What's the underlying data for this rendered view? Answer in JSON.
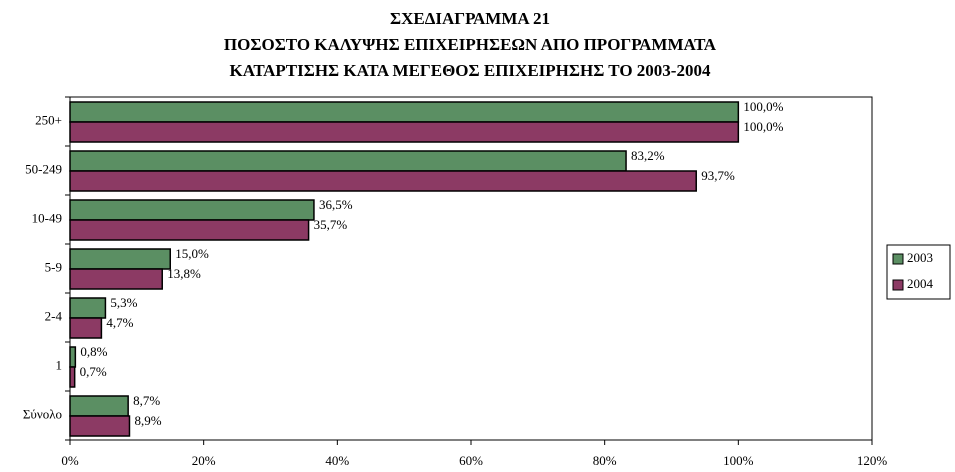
{
  "chart_data": {
    "type": "hbar",
    "title": [
      "ΣΧΕΔΙΑΓΡΑΜΜΑ 21",
      "ΠΟΣΟΣΤΟ ΚΑΛΥΨΗΣ ΕΠΙΧΕΙΡΗΣΕΩΝ ΑΠΟ ΠΡΟΓΡΑΜΜΑΤΑ",
      "ΚΑΤΑΡΤΙΣΗΣ ΚΑΤΑ ΜΕΓΕΘΟΣ ΕΠΙΧΕΙΡΗΣΗΣ ΤΟ 2003-2004"
    ],
    "categories": [
      "250+",
      "50-249",
      "10-49",
      "5-9",
      "2-4",
      "1",
      "Σύνολο"
    ],
    "series": [
      {
        "name": "2003",
        "color": "#5b8f63",
        "values": [
          100.0,
          83.2,
          36.5,
          15.0,
          5.3,
          0.8,
          8.7
        ],
        "value_labels": [
          "100,0%",
          "83,2%",
          "36,5%",
          "15,0%",
          "5,3%",
          "0,8%",
          "8,7%"
        ]
      },
      {
        "name": "2004",
        "color": "#8c3a64",
        "values": [
          100.0,
          93.7,
          35.7,
          13.8,
          4.7,
          0.7,
          8.9
        ],
        "value_labels": [
          "100,0%",
          "93,7%",
          "35,7%",
          "13,8%",
          "4,7%",
          "0,7%",
          "8,9%"
        ]
      }
    ],
    "xlim": [
      0,
      120
    ],
    "xticks": [
      {
        "value": 0,
        "label": "0%"
      },
      {
        "value": 20,
        "label": "20%"
      },
      {
        "value": 40,
        "label": "40%"
      },
      {
        "value": 60,
        "label": "60%"
      },
      {
        "value": 80,
        "label": "80%"
      },
      {
        "value": 100,
        "label": "100%"
      },
      {
        "value": 120,
        "label": "120%"
      }
    ],
    "legend": "right"
  }
}
